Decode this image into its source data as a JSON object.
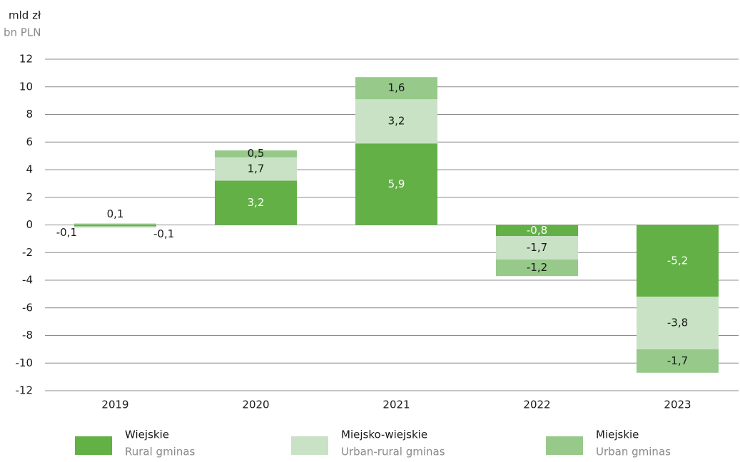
{
  "chart_data": {
    "type": "stacked_bar",
    "y_label": "mld zł",
    "y_label_en": "bn PLN",
    "categories": [
      "2019",
      "2020",
      "2021",
      "2022",
      "2023"
    ],
    "series": [
      {
        "name": "Wiejskie",
        "name_en": "Rural gminas",
        "color": "#62b046",
        "values": [
          -0.1,
          3.2,
          5.9,
          -0.8,
          -5.2
        ],
        "value_labels": [
          "-0,1",
          "3,2",
          "5,9",
          "-0,8",
          "-5,2"
        ]
      },
      {
        "name": "Miejsko-wiejskie",
        "name_en": "Urban-rural gminas",
        "color": "#c9e2c5",
        "values": [
          -0.1,
          1.7,
          3.2,
          -1.7,
          -3.8
        ],
        "value_labels": [
          "-0,1",
          "1,7",
          "3,2",
          "-1,7",
          "-3,8"
        ]
      },
      {
        "name": "Miejskie",
        "name_en": "Urban gminas",
        "color": "#96c98a",
        "values": [
          0.1,
          0.5,
          1.6,
          -1.2,
          -1.7
        ],
        "value_labels": [
          "0,1",
          "0,5",
          "1,6",
          "-1,2",
          "-1,7"
        ]
      }
    ],
    "ylim": [
      -12,
      12
    ],
    "yticks": [
      -12,
      -10,
      -8,
      -6,
      -4,
      -2,
      0,
      2,
      4,
      6,
      8,
      10,
      12
    ],
    "grid": true
  }
}
